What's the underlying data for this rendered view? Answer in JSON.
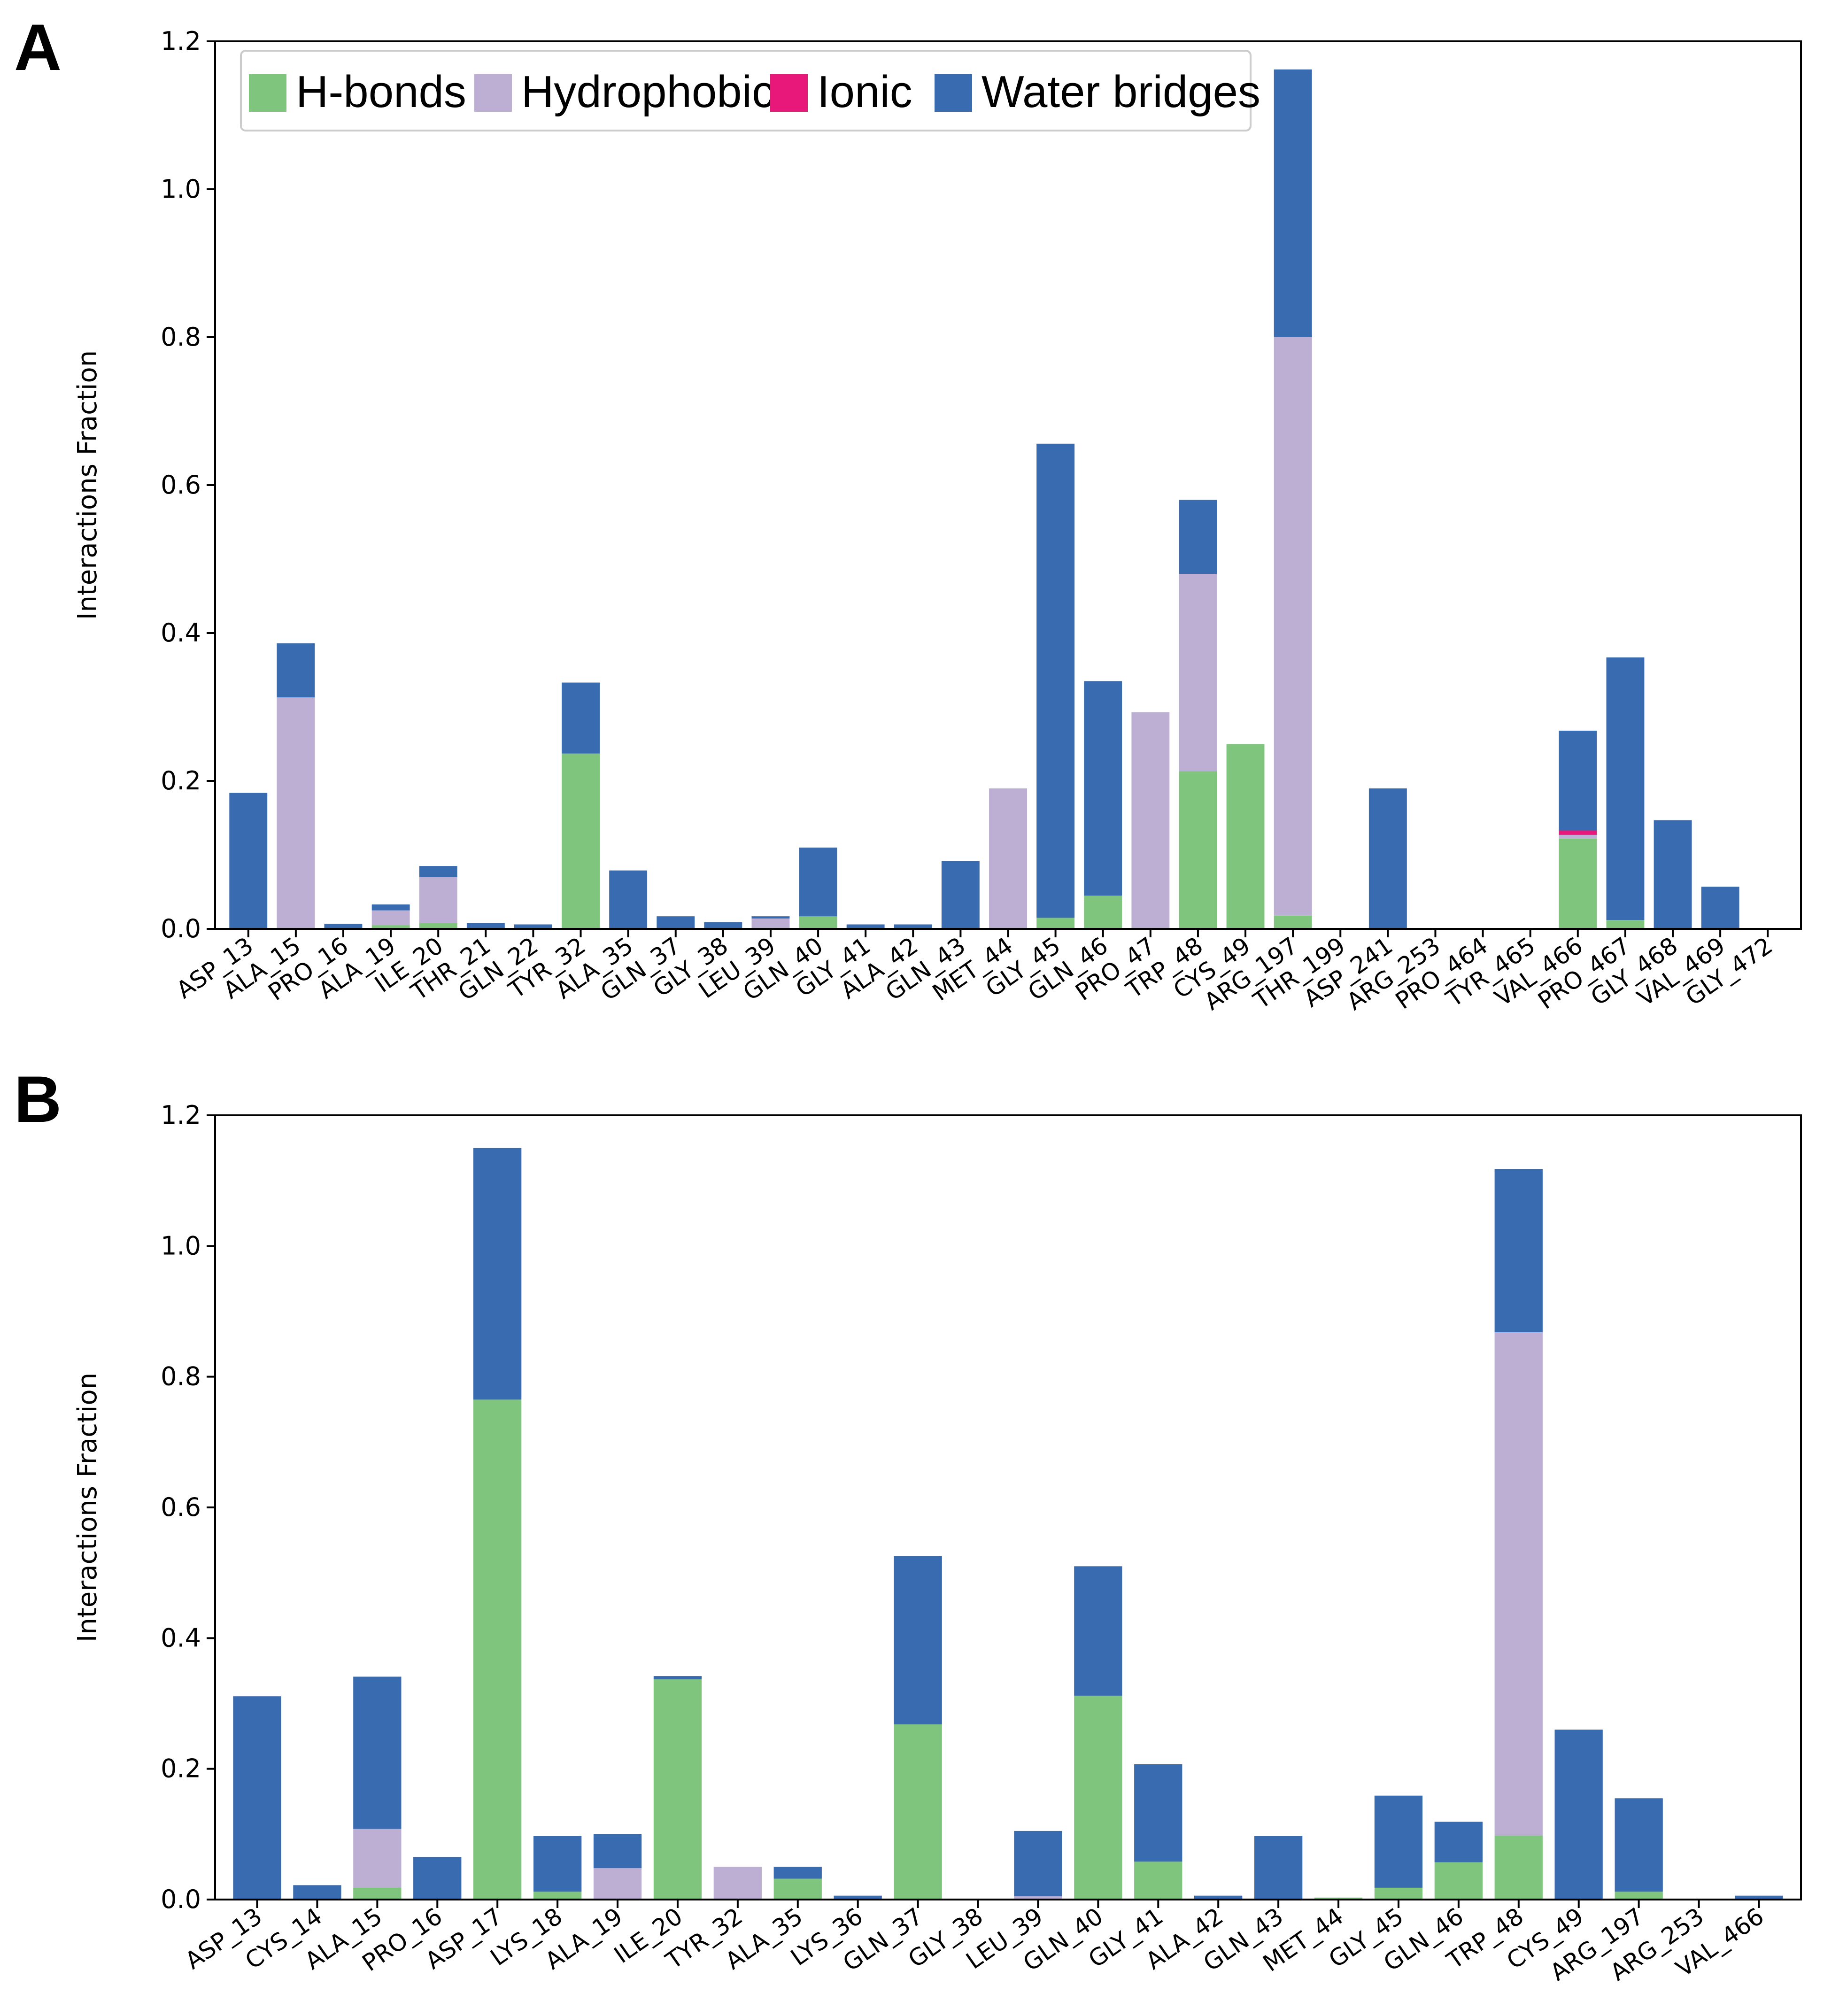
{
  "colors": {
    "hbonds": "#80c57d",
    "hydrophobic": "#bdaed4",
    "ionic": "#e8187a",
    "water": "#396bb1"
  },
  "panels": [
    {
      "label": "A"
    },
    {
      "label": "B"
    }
  ],
  "chart_data": [
    {
      "type": "bar",
      "stacked": true,
      "ylabel": "Interactions Fraction",
      "ylim": [
        0,
        1.2
      ],
      "yticks": [
        "0.0",
        "0.2",
        "0.4",
        "0.6",
        "0.8",
        "1.0",
        "1.2"
      ],
      "legend": {
        "placement": "top-left",
        "entries": [
          "H-bonds",
          "Hydrophobic",
          "Ionic",
          "Water bridges"
        ]
      },
      "categories": [
        "ASP_13",
        "ALA_15",
        "PRO_16",
        "ALA_19",
        "ILE_20",
        "THR_21",
        "GLN_22",
        "TYR_32",
        "ALA_35",
        "GLN_37",
        "GLY_38",
        "LEU_39",
        "GLN_40",
        "GLY_41",
        "ALA_42",
        "GLN_43",
        "MET_44",
        "GLY_45",
        "GLN_46",
        "PRO_47",
        "TRP_48",
        "CYS_49",
        "ARG_197",
        "THR_199",
        "ASP_241",
        "ARG_253",
        "PRO_464",
        "TYR_465",
        "VAL_466",
        "PRO_467",
        "GLY_468",
        "VAL_469",
        "GLY_472"
      ],
      "series": [
        {
          "name": "H-bonds",
          "values": [
            0,
            0,
            0,
            0.005,
            0.008,
            0,
            0,
            0.237,
            0,
            0,
            0,
            0,
            0.017,
            0,
            0,
            0,
            0,
            0.015,
            0.045,
            0,
            0.213,
            0.25,
            0.018,
            0,
            0,
            0,
            0,
            0,
            0.122,
            0.012,
            0,
            0,
            0
          ]
        },
        {
          "name": "Hydrophobic",
          "values": [
            0,
            0.313,
            0,
            0.02,
            0.062,
            0,
            0,
            0,
            0,
            0,
            0,
            0.014,
            0,
            0,
            0,
            0,
            0.19,
            0,
            0,
            0.293,
            0.267,
            0,
            0.782,
            0,
            0,
            0,
            0,
            0,
            0.005,
            0,
            0,
            0,
            0
          ]
        },
        {
          "name": "Ionic",
          "values": [
            0,
            0,
            0,
            0,
            0,
            0,
            0,
            0,
            0,
            0,
            0,
            0,
            0,
            0,
            0,
            0,
            0,
            0,
            0,
            0,
            0,
            0,
            0,
            0,
            0,
            0,
            0,
            0,
            0.006,
            0,
            0,
            0,
            0
          ]
        },
        {
          "name": "Water bridges",
          "values": [
            0.184,
            0.073,
            0.007,
            0.008,
            0.015,
            0.008,
            0.006,
            0.096,
            0.079,
            0.017,
            0.009,
            0.003,
            0.093,
            0.006,
            0.006,
            0.092,
            0,
            0.641,
            0.29,
            0,
            0.1,
            0,
            0.362,
            0,
            0.19,
            0,
            0,
            0,
            0.135,
            0.355,
            0.147,
            0.057,
            0
          ]
        }
      ]
    },
    {
      "type": "bar",
      "stacked": true,
      "ylabel": "Interactions Fraction",
      "ylim": [
        0,
        1.2
      ],
      "yticks": [
        "0.0",
        "0.2",
        "0.4",
        "0.6",
        "0.8",
        "1.0",
        "1.2"
      ],
      "categories": [
        "ASP_13",
        "CYS_14",
        "ALA_15",
        "PRO_16",
        "ASP_17",
        "LYS_18",
        "ALA_19",
        "ILE_20",
        "TYR_32",
        "ALA_35",
        "LYS_36",
        "GLN_37",
        "GLY_38",
        "LEU_39",
        "GLN_40",
        "GLY_41",
        "ALA_42",
        "GLN_43",
        "MET_44",
        "GLY_45",
        "GLN_46",
        "TRP_48",
        "CYS_49",
        "ARG_197",
        "ARG_253",
        "VAL_466"
      ],
      "series": [
        {
          "name": "H-bonds",
          "values": [
            0,
            0,
            0.018,
            0,
            0.765,
            0.012,
            0,
            0.337,
            0,
            0.032,
            0,
            0.268,
            0,
            0,
            0.312,
            0.058,
            0,
            0,
            0.003,
            0.018,
            0.057,
            0.098,
            0,
            0.012,
            0,
            0
          ]
        },
        {
          "name": "Hydrophobic",
          "values": [
            0,
            0,
            0.09,
            0,
            0,
            0,
            0.048,
            0,
            0.05,
            0,
            0,
            0,
            0,
            0.005,
            0,
            0,
            0,
            0,
            0,
            0,
            0,
            0.77,
            0,
            0,
            0,
            0
          ]
        },
        {
          "name": "Ionic",
          "values": [
            0,
            0,
            0,
            0,
            0,
            0,
            0,
            0,
            0,
            0,
            0,
            0,
            0,
            0,
            0,
            0,
            0,
            0,
            0,
            0,
            0,
            0,
            0,
            0,
            0,
            0
          ]
        },
        {
          "name": "Water bridges",
          "values": [
            0.311,
            0.022,
            0.233,
            0.065,
            0.385,
            0.085,
            0.052,
            0.005,
            0,
            0.018,
            0.006,
            0.258,
            0,
            0.1,
            0.198,
            0.149,
            0.006,
            0.097,
            0,
            0.141,
            0.062,
            0.25,
            0.26,
            0.143,
            0,
            0.006
          ]
        }
      ]
    }
  ]
}
